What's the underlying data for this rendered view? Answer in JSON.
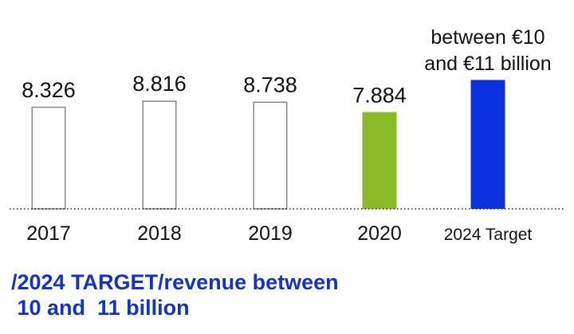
{
  "chart_data": {
    "type": "bar",
    "categories": [
      "2017",
      "2018",
      "2019",
      "2020",
      "2024 Target"
    ],
    "values": [
      8.326,
      8.816,
      8.738,
      7.884,
      10.5
    ],
    "value_labels": [
      "8.326",
      "8.816",
      "8.738",
      "7.884",
      ""
    ],
    "target_annotation": [
      "between €10",
      "and €11 billion"
    ],
    "bar_styles": [
      "outline",
      "outline",
      "outline",
      "filled",
      "filled"
    ],
    "bar_colors": [
      "#888888",
      "#888888",
      "#888888",
      "#8aba28",
      "#0a32e0"
    ],
    "baseline_style": "dotted",
    "ylim": [
      0,
      16
    ],
    "grid": false,
    "legend": "none",
    "title": "",
    "xlabel": "",
    "ylabel": ""
  },
  "headline": {
    "line1": "/2024 TARGET/revenue between",
    "line2": " 10 and  11 billion"
  },
  "colors": {
    "headline": "#1233c9",
    "text": "#111111"
  }
}
